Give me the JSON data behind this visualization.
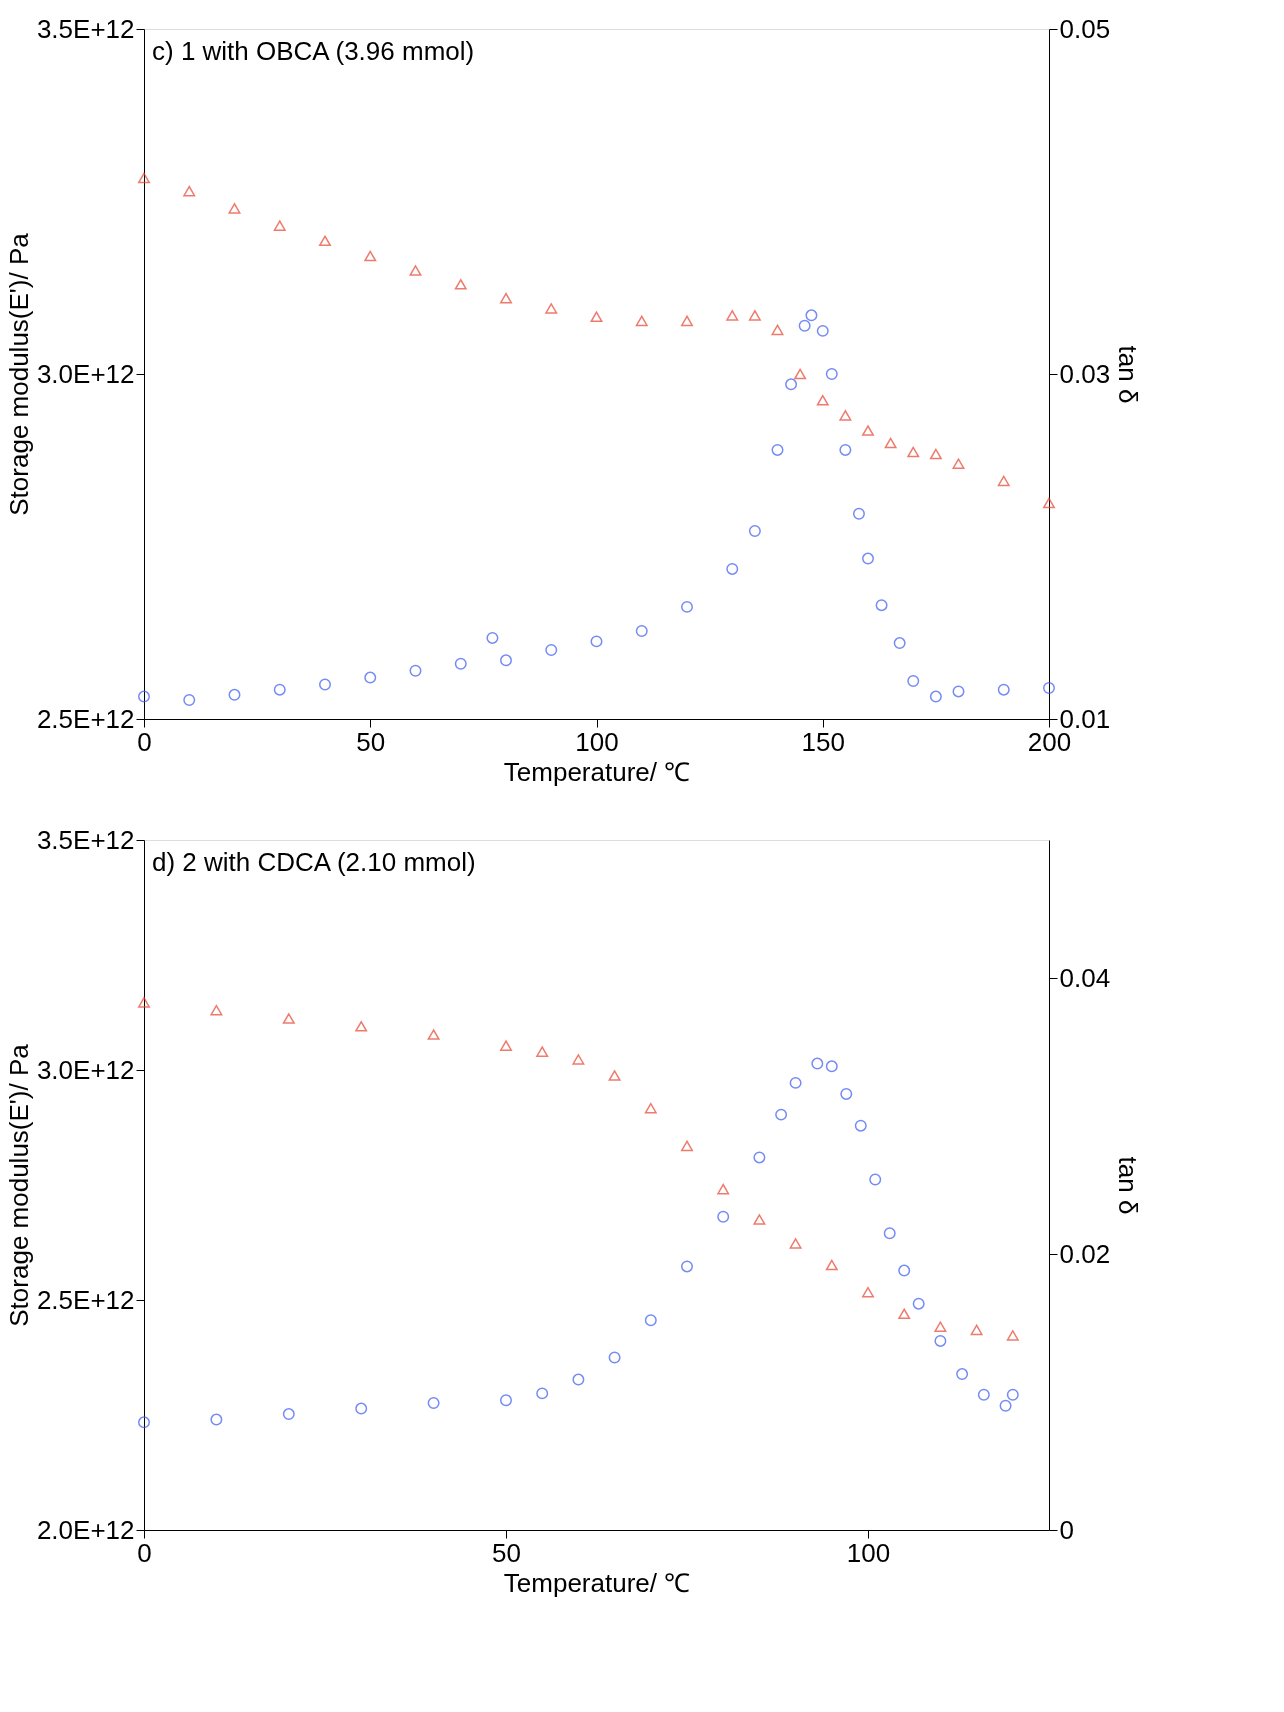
{
  "chart_data": [
    {
      "type": "scatter",
      "title": "c) 1 with OBCA (3.96 mmol)",
      "xlabel": "Temperature/ ℃",
      "ylabel": "Storage modulus(E')/ Pa",
      "y2label": "tan δ",
      "xlim": [
        0,
        200
      ],
      "xticks": [
        0,
        50,
        100,
        150,
        200
      ],
      "ylim": [
        2500000000000.0,
        3500000000000.0
      ],
      "yticks": [
        {
          "value": 2500000000000.0,
          "label": "2.5E+12"
        },
        {
          "value": 3000000000000.0,
          "label": "3.0E+12"
        },
        {
          "value": 3500000000000.0,
          "label": "3.5E+12"
        }
      ],
      "y2lim": [
        0.01,
        0.05
      ],
      "y2ticks": [
        0.01,
        0.03,
        0.05
      ],
      "grid": false,
      "series": [
        {
          "color": "#e8432f",
          "marker": "triangle",
          "x": [
            0,
            10,
            20,
            30,
            40,
            50,
            60,
            70,
            80,
            90,
            100,
            110,
            120,
            130,
            135,
            140,
            145,
            150,
            155,
            160,
            165,
            170,
            175,
            180,
            190,
            200
          ],
          "values": [
            3284000000000.0,
            3265000000000.0,
            3240000000000.0,
            3215000000000.0,
            3193000000000.0,
            3171000000000.0,
            3150000000000.0,
            3130000000000.0,
            3110000000000.0,
            3095000000000.0,
            3083000000000.0,
            3077000000000.0,
            3077000000000.0,
            3085000000000.0,
            3085000000000.0,
            3064000000000.0,
            3000000000000.0,
            2962000000000.0,
            2940000000000.0,
            2918000000000.0,
            2900000000000.0,
            2887000000000.0,
            2884000000000.0,
            2870000000000.0,
            2845000000000.0,
            2813000000000.0
          ]
        },
        {
          "color": "#3b5bf0",
          "marker": "circle",
          "axis": "y2",
          "x": [
            0,
            10,
            20,
            30,
            40,
            50,
            60,
            70,
            77,
            80,
            90,
            100,
            110,
            120,
            130,
            135,
            140,
            143,
            146,
            147.5,
            150,
            152,
            155,
            158,
            160,
            163,
            167,
            170,
            175,
            180,
            190,
            200
          ],
          "values": [
            0.0113,
            0.0111,
            0.0114,
            0.0117,
            0.012,
            0.0124,
            0.0128,
            0.0132,
            0.0147,
            0.0134,
            0.014,
            0.0145,
            0.0151,
            0.0165,
            0.0187,
            0.0209,
            0.0256,
            0.0294,
            0.0328,
            0.0334,
            0.0325,
            0.03,
            0.0256,
            0.0219,
            0.0193,
            0.0166,
            0.0144,
            0.0122,
            0.0113,
            0.0116,
            0.0117,
            0.0118
          ]
        }
      ]
    },
    {
      "type": "scatter",
      "title": "d) 2 with CDCA (2.10 mmol)",
      "xlabel": "Temperature/ ℃",
      "ylabel": "Storage modulus(E')/ Pa",
      "y2label": "tan δ",
      "xlim": [
        0,
        125
      ],
      "xticks": [
        0,
        50,
        100
      ],
      "ylim": [
        2000000000000.0,
        3500000000000.0
      ],
      "yticks": [
        {
          "value": 2000000000000.0,
          "label": "2.0E+12"
        },
        {
          "value": 2500000000000.0,
          "label": "2.5E+12"
        },
        {
          "value": 3000000000000.0,
          "label": "3.0E+12"
        },
        {
          "value": 3500000000000.0,
          "label": "3.5E+12"
        }
      ],
      "y2lim": [
        0,
        0.05
      ],
      "y2ticks": [
        0,
        0.02,
        0.04
      ],
      "grid": false,
      "series": [
        {
          "color": "#e8432f",
          "marker": "triangle",
          "x": [
            0,
            10,
            20,
            30,
            40,
            50,
            55,
            60,
            65,
            70,
            75,
            80,
            85,
            90,
            95,
            100,
            105,
            110,
            115,
            120
          ],
          "values": [
            3147000000000.0,
            3130000000000.0,
            3112000000000.0,
            3095000000000.0,
            3077000000000.0,
            3053000000000.0,
            3040000000000.0,
            3023000000000.0,
            2988000000000.0,
            2917000000000.0,
            2835000000000.0,
            2741000000000.0,
            2675000000000.0,
            2623000000000.0,
            2576000000000.0,
            2517000000000.0,
            2470000000000.0,
            2442000000000.0,
            2435000000000.0,
            2423000000000.0
          ]
        },
        {
          "color": "#3b5bf0",
          "marker": "circle",
          "axis": "y2",
          "x": [
            0,
            10,
            20,
            30,
            40,
            50,
            55,
            60,
            65,
            70,
            75,
            80,
            85,
            88,
            90,
            93,
            95,
            97,
            99,
            101,
            103,
            105,
            107,
            110,
            113,
            116,
            119,
            120
          ],
          "values": [
            0.0078,
            0.008,
            0.0084,
            0.0088,
            0.0092,
            0.0094,
            0.0099,
            0.0109,
            0.0125,
            0.0152,
            0.0191,
            0.0227,
            0.027,
            0.0301,
            0.0324,
            0.0338,
            0.0336,
            0.0316,
            0.0293,
            0.0254,
            0.0215,
            0.0188,
            0.0164,
            0.0137,
            0.0113,
            0.0098,
            0.009,
            0.0098
          ]
        }
      ]
    }
  ]
}
